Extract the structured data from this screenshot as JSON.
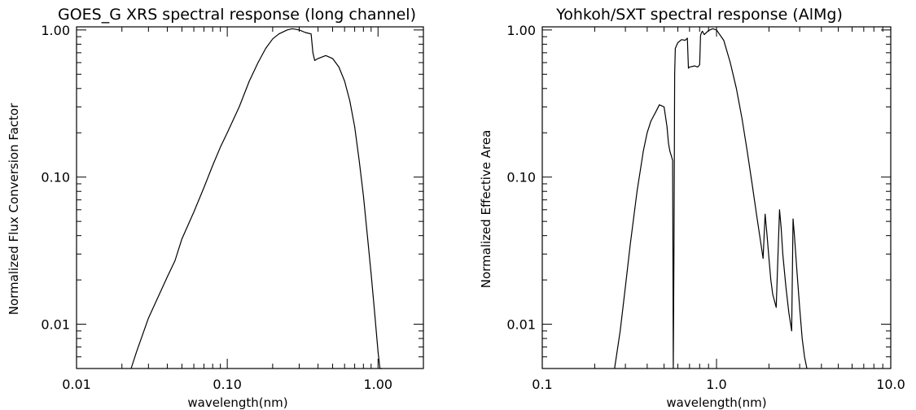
{
  "chart_data": [
    {
      "type": "line",
      "title": "GOES_G XRS spectral response (long channel)",
      "xlabel": "wavelength(nm)",
      "ylabel": "Normalized Flux Conversion Factor",
      "xscale": "log",
      "yscale": "log",
      "xlim": [
        0.01,
        2.0
      ],
      "ylim": [
        0.005,
        1.05
      ],
      "xticks": [
        "0.01",
        "0.10",
        "1.00"
      ],
      "yticks": [
        "0.01",
        "0.10",
        "1.00"
      ],
      "series": [
        {
          "x": [
            0.023,
            0.025,
            0.03,
            0.04,
            0.045,
            0.05,
            0.06,
            0.07,
            0.08,
            0.09,
            0.1,
            0.12,
            0.14,
            0.16,
            0.18,
            0.2,
            0.22,
            0.25,
            0.27,
            0.3,
            0.33,
            0.36,
            0.37,
            0.38,
            0.4,
            0.45,
            0.5,
            0.55,
            0.6,
            0.65,
            0.7,
            0.75,
            0.8,
            0.85,
            0.9,
            0.95,
            1.0,
            1.03,
            1.06
          ],
          "y": [
            0.0045,
            0.0065,
            0.011,
            0.021,
            0.027,
            0.038,
            0.058,
            0.085,
            0.12,
            0.16,
            0.2,
            0.3,
            0.45,
            0.6,
            0.75,
            0.87,
            0.94,
            1.0,
            1.02,
            1.0,
            0.96,
            0.94,
            0.7,
            0.62,
            0.64,
            0.67,
            0.64,
            0.56,
            0.45,
            0.33,
            0.22,
            0.13,
            0.075,
            0.04,
            0.022,
            0.012,
            0.0065,
            0.0045,
            0.003
          ]
        }
      ]
    },
    {
      "type": "line",
      "title": "Yohkoh/SXT spectral response (AlMg)",
      "xlabel": "wavelength(nm)",
      "ylabel": "Normalized Effective Area",
      "xscale": "log",
      "yscale": "log",
      "xlim": [
        0.1,
        10.0
      ],
      "ylim": [
        0.005,
        1.05
      ],
      "xticks": [
        "0.1",
        "1.0",
        "10.0"
      ],
      "yticks": [
        "0.01",
        "0.10",
        "1.00"
      ],
      "series": [
        {
          "x": [
            0.26,
            0.28,
            0.3,
            0.32,
            0.35,
            0.38,
            0.4,
            0.42,
            0.45,
            0.47,
            0.5,
            0.52,
            0.53,
            0.54,
            0.55,
            0.56,
            0.565,
            0.57,
            0.575,
            0.58,
            0.6,
            0.63,
            0.66,
            0.68,
            0.69,
            0.7,
            0.75,
            0.78,
            0.8,
            0.81,
            0.82,
            0.83,
            0.85,
            0.9,
            0.95,
            1.0,
            1.1,
            1.2,
            1.3,
            1.4,
            1.5,
            1.6,
            1.7,
            1.8,
            1.85,
            1.9,
            1.95,
            2.0,
            2.05,
            2.1,
            2.2,
            2.3,
            2.35,
            2.4,
            2.5,
            2.6,
            2.7,
            2.75,
            2.8,
            2.9,
            3.0,
            3.1,
            3.2,
            3.3
          ],
          "y": [
            0.0045,
            0.009,
            0.018,
            0.035,
            0.08,
            0.15,
            0.2,
            0.24,
            0.28,
            0.31,
            0.3,
            0.22,
            0.17,
            0.15,
            0.14,
            0.13,
            0.003,
            0.035,
            0.5,
            0.75,
            0.82,
            0.86,
            0.85,
            0.88,
            0.55,
            0.56,
            0.57,
            0.56,
            0.58,
            0.92,
            0.96,
            0.98,
            0.93,
            0.99,
            1.02,
            1.0,
            0.85,
            0.6,
            0.4,
            0.25,
            0.15,
            0.09,
            0.055,
            0.035,
            0.028,
            0.056,
            0.04,
            0.028,
            0.02,
            0.016,
            0.013,
            0.06,
            0.045,
            0.03,
            0.018,
            0.012,
            0.009,
            0.052,
            0.04,
            0.022,
            0.013,
            0.008,
            0.006,
            0.0045
          ]
        }
      ]
    }
  ]
}
